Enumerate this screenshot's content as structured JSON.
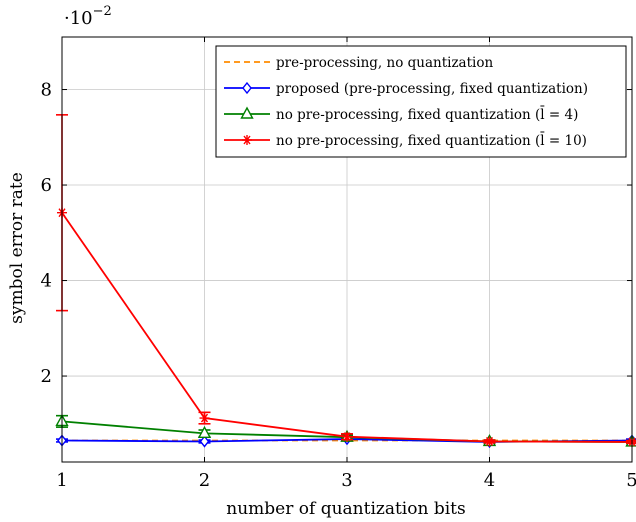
{
  "chart_data": {
    "type": "line",
    "title": "",
    "xlabel": "number of quantization bits",
    "ylabel": "symbol error rate",
    "y_scale_label": "·10",
    "y_scale_exponent": "−2",
    "x_ticks": [
      1,
      2,
      3,
      4,
      5
    ],
    "y_ticks": [
      2,
      4,
      6,
      8
    ],
    "xlim": [
      1,
      5
    ],
    "ylim": [
      0.2,
      9.1
    ],
    "grid": true,
    "legend_position": "top-right",
    "x": [
      1,
      2,
      3,
      4,
      5
    ],
    "series": [
      {
        "name": "pre-processing, no quantization",
        "color": "#ff8c00",
        "dashed": true,
        "marker": "none",
        "values": [
          0.65,
          0.65,
          0.65,
          0.65,
          0.65
        ]
      },
      {
        "name": "proposed (pre-processing, fixed quantization)",
        "color": "#0000ff",
        "dashed": false,
        "marker": "diamond",
        "values": [
          0.65,
          0.63,
          0.68,
          0.62,
          0.65
        ],
        "errors": [
          0.03,
          0.03,
          0.03,
          0.03,
          0.03
        ]
      },
      {
        "name": "no pre-processing, fixed quantization (l̄ = 4)",
        "color": "#008000",
        "dashed": false,
        "marker": "triangle",
        "values": [
          1.05,
          0.8,
          0.72,
          0.63,
          0.62
        ],
        "errors": [
          0.12,
          0.07,
          0.04,
          0.03,
          0.03
        ]
      },
      {
        "name": "no pre-processing, fixed quantization (l̄ = 10)",
        "color": "#ff0000",
        "dashed": false,
        "marker": "star",
        "values": [
          5.42,
          1.12,
          0.73,
          0.63,
          0.62
        ],
        "errors": [
          2.05,
          0.12,
          0.06,
          0.03,
          0.03
        ]
      }
    ]
  }
}
